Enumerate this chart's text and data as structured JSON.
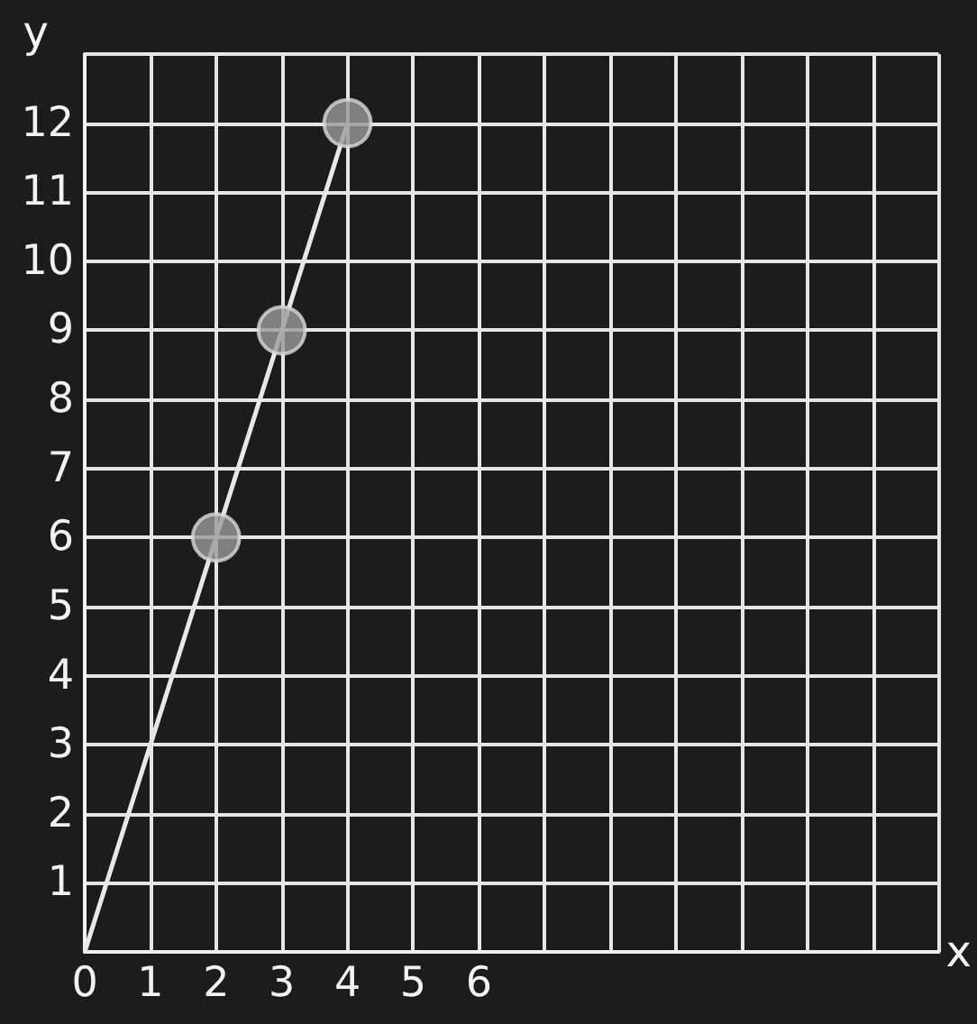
{
  "chart_data": {
    "type": "line",
    "xlabel": "x",
    "ylabel": "y",
    "xlim": [
      0,
      13
    ],
    "ylim": [
      0,
      13
    ],
    "xticks": [
      0,
      1,
      2,
      3,
      4,
      5,
      6,
      {
        "value": 7,
        "label": null
      },
      {
        "value": 8,
        "label": null
      },
      {
        "value": 9,
        "label": null
      },
      {
        "value": 10,
        "label": null
      },
      {
        "value": 11,
        "label": null
      },
      {
        "value": 12,
        "label": null
      },
      {
        "value": 13,
        "label": null
      }
    ],
    "yticks": [
      {
        "value": 0,
        "label": null
      },
      1,
      2,
      3,
      4,
      5,
      6,
      7,
      8,
      9,
      10,
      11,
      12,
      {
        "value": 13,
        "label": null
      }
    ],
    "grid": true,
    "series": [
      {
        "type": "line",
        "color": "#e8e8e8",
        "marker": "none",
        "x": [
          0,
          2,
          3,
          4
        ],
        "values": [
          0,
          6,
          9,
          12
        ]
      },
      {
        "type": "scatter",
        "color": "#9a9a9a",
        "marker": "circle",
        "x": [
          2,
          3,
          4
        ],
        "values": [
          6,
          9,
          12
        ]
      }
    ]
  }
}
